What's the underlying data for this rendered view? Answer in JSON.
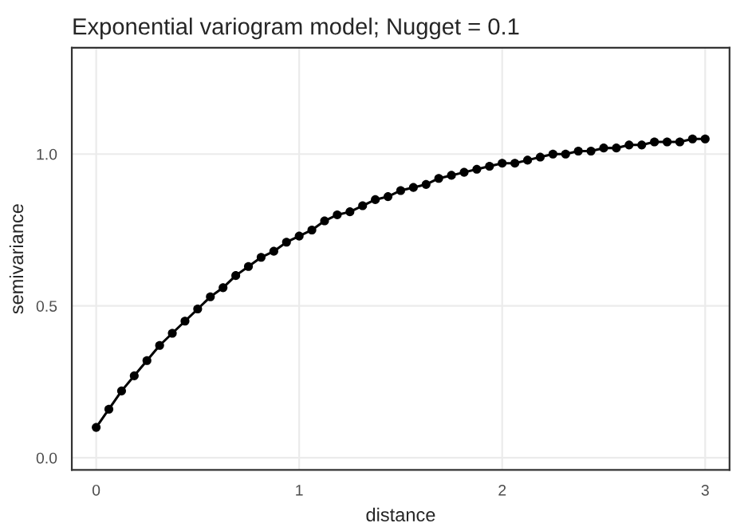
{
  "chart_data": {
    "type": "line",
    "title": "Exponential variogram model; Nugget = 0.1",
    "xlabel": "distance",
    "ylabel": "semivariance",
    "x": [
      0,
      0.0625,
      0.125,
      0.1875,
      0.25,
      0.3125,
      0.375,
      0.4375,
      0.5,
      0.5625,
      0.625,
      0.6875,
      0.75,
      0.8125,
      0.875,
      0.9375,
      1,
      1.0625,
      1.125,
      1.1875,
      1.25,
      1.3125,
      1.375,
      1.4375,
      1.5,
      1.5625,
      1.625,
      1.6875,
      1.75,
      1.8125,
      1.875,
      1.9375,
      2,
      2.0625,
      2.125,
      2.1875,
      2.25,
      2.3125,
      2.375,
      2.4375,
      2.5,
      2.5625,
      2.625,
      2.6875,
      2.75,
      2.8125,
      2.875,
      2.9375,
      3
    ],
    "series": [
      {
        "color": "#000000",
        "values": [
          0.1,
          0.16,
          0.22,
          0.27,
          0.32,
          0.37,
          0.41,
          0.45,
          0.49,
          0.53,
          0.56,
          0.6,
          0.63,
          0.66,
          0.68,
          0.71,
          0.73,
          0.75,
          0.78,
          0.8,
          0.81,
          0.83,
          0.85,
          0.86,
          0.88,
          0.89,
          0.9,
          0.92,
          0.93,
          0.94,
          0.95,
          0.96,
          0.97,
          0.97,
          0.98,
          0.99,
          1.0,
          1.0,
          1.01,
          1.01,
          1.02,
          1.02,
          1.03,
          1.03,
          1.04,
          1.04,
          1.04,
          1.05,
          1.05
        ]
      }
    ],
    "xlim": [
      -0.12,
      3.12
    ],
    "ylim": [
      -0.04,
      1.35
    ],
    "xticks": [
      0,
      1,
      2,
      3
    ],
    "yticks": [
      {
        "value": 0,
        "label": "0.0"
      },
      {
        "value": 0.5,
        "label": "0.5"
      },
      {
        "value": 1,
        "label": "1.0"
      }
    ],
    "grid": true,
    "marker": "circle",
    "line_style": "solid"
  }
}
